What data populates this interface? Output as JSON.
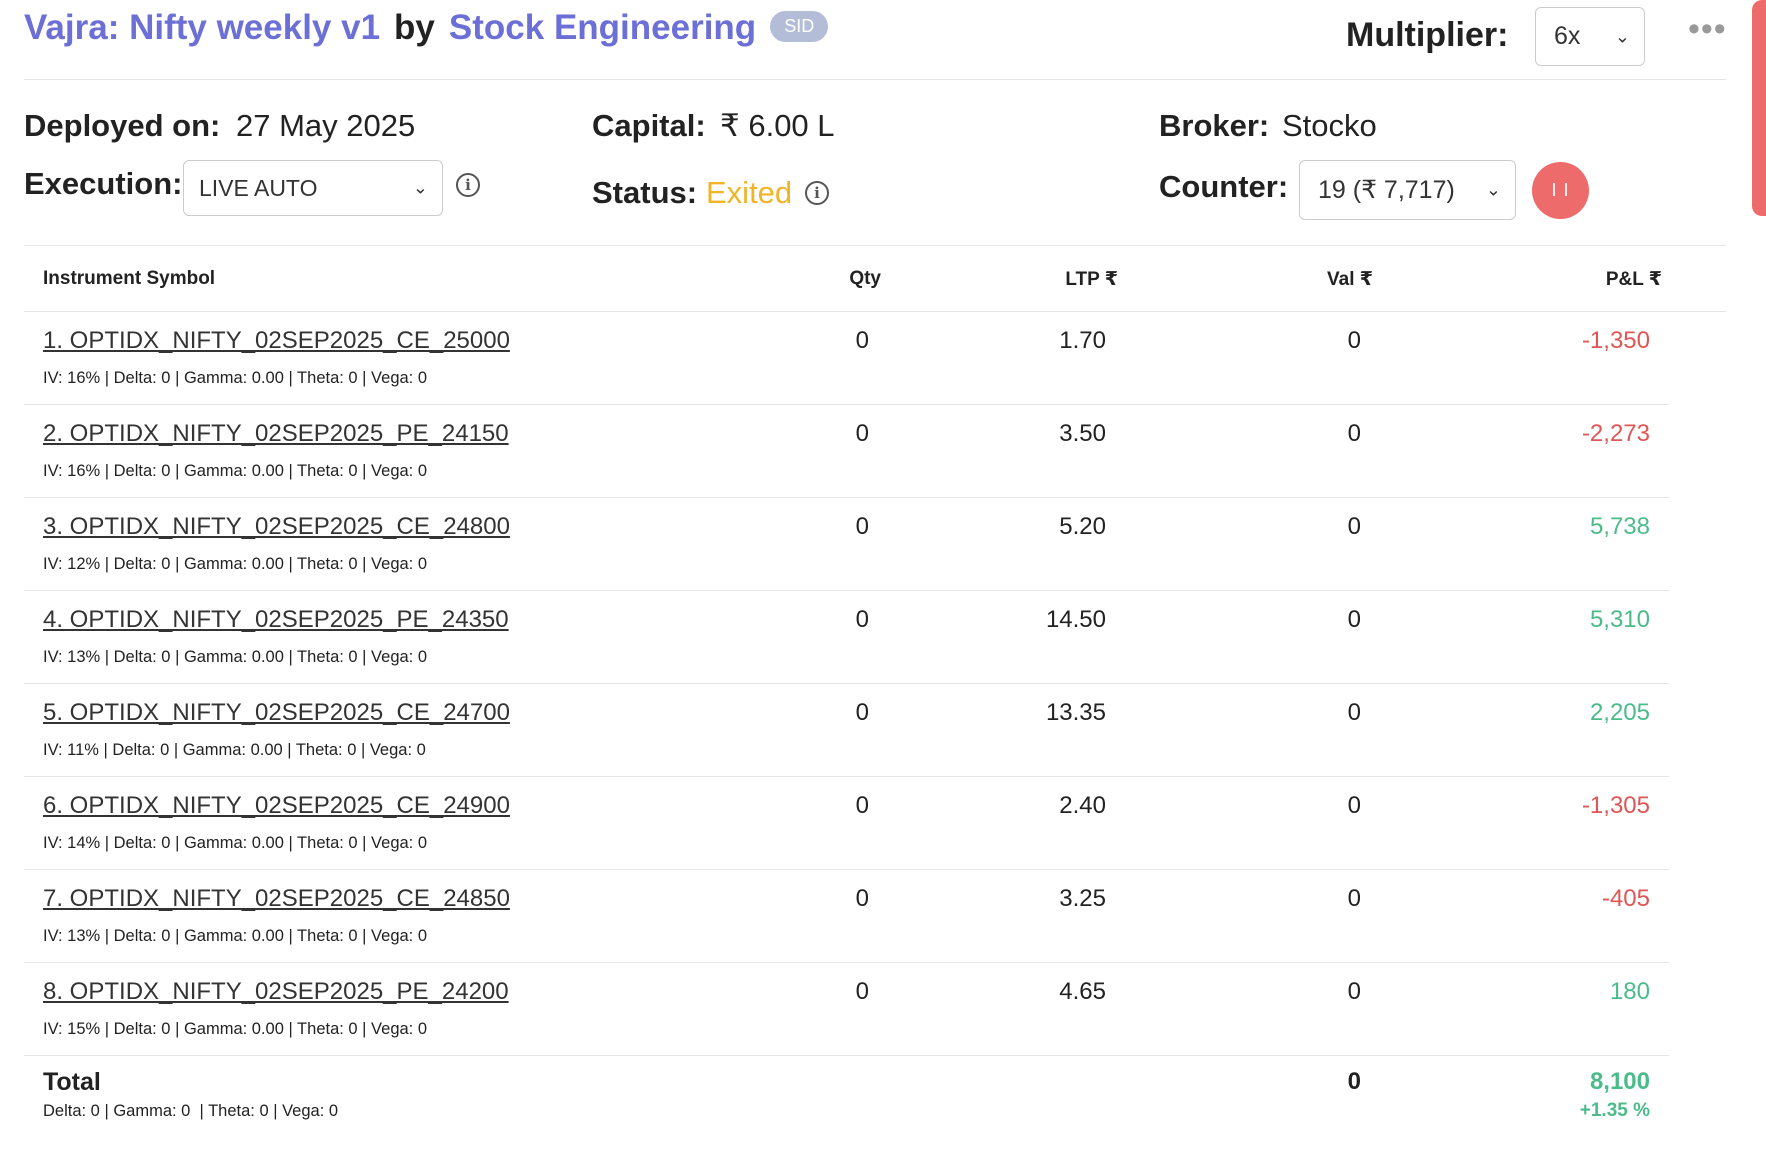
{
  "header": {
    "strategy_name": "Vajra: Nifty weekly v1",
    "by": "by",
    "author": "Stock Engineering",
    "badge": "SID",
    "multiplier_label": "Multiplier:",
    "multiplier_value": "6x",
    "more_icon": "more-horizontal-icon"
  },
  "info": {
    "deployed_label": "Deployed on:",
    "deployed_value": "27 May 2025",
    "capital_label": "Capital:",
    "capital_value": "₹ 6.00 L",
    "broker_label": "Broker:",
    "broker_value": "Stocko",
    "execution_label": "Execution:",
    "execution_value": "LIVE AUTO",
    "status_label": "Status:",
    "status_value": "Exited",
    "counter_label": "Counter:",
    "counter_value": "19 (₹ 7,717)",
    "pause_icon": "pause-icon",
    "status_color": "#f0b429"
  },
  "table": {
    "headers": {
      "symbol": "Instrument Symbol",
      "qty": "Qty",
      "ltp": "LTP ₹",
      "val": "Val ₹",
      "pl": "P&L ₹"
    },
    "rows": [
      {
        "symbol": "1. OPTIDX_NIFTY_02SEP2025_CE_25000",
        "greeks": "IV: 16% | Delta: 0 | Gamma: 0.00 | Theta: 0 | Vega: 0",
        "qty": "0",
        "ltp": "1.70",
        "val": "0",
        "pl": "-1,350",
        "sign": "neg"
      },
      {
        "symbol": "2. OPTIDX_NIFTY_02SEP2025_PE_24150",
        "greeks": "IV: 16% | Delta: 0 | Gamma: 0.00 | Theta: 0 | Vega: 0",
        "qty": "0",
        "ltp": "3.50",
        "val": "0",
        "pl": "-2,273",
        "sign": "neg"
      },
      {
        "symbol": "3. OPTIDX_NIFTY_02SEP2025_CE_24800",
        "greeks": "IV: 12% | Delta: 0 | Gamma: 0.00 | Theta: 0 | Vega: 0",
        "qty": "0",
        "ltp": "5.20",
        "val": "0",
        "pl": "5,738",
        "sign": "pos"
      },
      {
        "symbol": "4. OPTIDX_NIFTY_02SEP2025_PE_24350",
        "greeks": "IV: 13% | Delta: 0 | Gamma: 0.00 | Theta: 0 | Vega: 0",
        "qty": "0",
        "ltp": "14.50",
        "val": "0",
        "pl": "5,310",
        "sign": "pos"
      },
      {
        "symbol": "5. OPTIDX_NIFTY_02SEP2025_CE_24700",
        "greeks": "IV: 11% | Delta: 0 | Gamma: 0.00 | Theta: 0 | Vega: 0",
        "qty": "0",
        "ltp": "13.35",
        "val": "0",
        "pl": "2,205",
        "sign": "pos"
      },
      {
        "symbol": "6. OPTIDX_NIFTY_02SEP2025_CE_24900",
        "greeks": "IV: 14% | Delta: 0 | Gamma: 0.00 | Theta: 0 | Vega: 0",
        "qty": "0",
        "ltp": "2.40",
        "val": "0",
        "pl": "-1,305",
        "sign": "neg"
      },
      {
        "symbol": "7. OPTIDX_NIFTY_02SEP2025_CE_24850",
        "greeks": "IV: 13% | Delta: 0 | Gamma: 0.00 | Theta: 0 | Vega: 0",
        "qty": "0",
        "ltp": "3.25",
        "val": "0",
        "pl": "-405",
        "sign": "neg"
      },
      {
        "symbol": "8. OPTIDX_NIFTY_02SEP2025_PE_24200",
        "greeks": "IV: 15% | Delta: 0 | Gamma: 0.00 | Theta: 0 | Vega: 0",
        "qty": "0",
        "ltp": "4.65",
        "val": "0",
        "pl": "180",
        "sign": "pos"
      }
    ],
    "total": {
      "label": "Total",
      "greeks": "Delta: 0 | Gamma: 0  | Theta: 0 | Vega: 0",
      "val": "0",
      "pl": "8,100",
      "pct": "+1.35 %"
    }
  },
  "colors": {
    "accent": "#6b6fd6",
    "negative": "#e05555",
    "positive": "#4cbb8a",
    "pause": "#ee6b6b"
  }
}
